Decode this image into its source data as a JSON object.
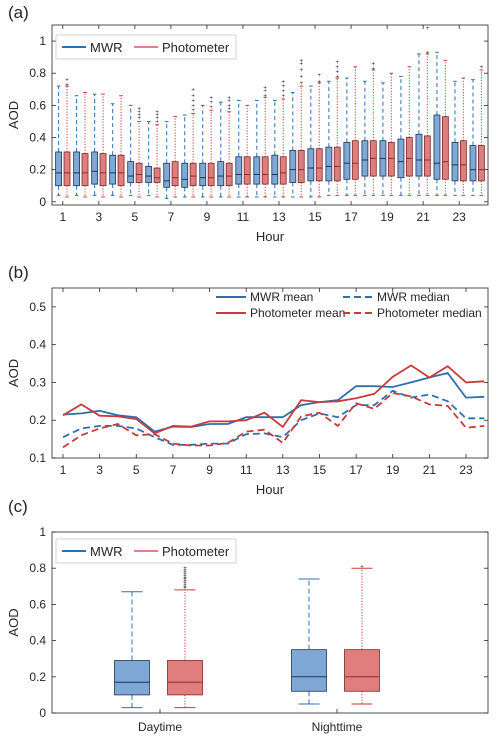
{
  "colors": {
    "mwr": "#2f6fb0",
    "photometer": "#c93a3a",
    "mwr_fill": "#7fa8d6",
    "photometer_fill": "#e07d7d",
    "axis": "#262626",
    "grid": "#d9d9d9"
  },
  "chart_data": [
    {
      "panel_label": "(a)",
      "type": "box",
      "xlabel": "Hour",
      "ylabel": "AOD",
      "xlim": [
        0.4,
        24.6
      ],
      "ylim": [
        -0.02,
        1.1
      ],
      "xticks": [
        "1",
        "3",
        "5",
        "7",
        "9",
        "11",
        "13",
        "15",
        "17",
        "19",
        "21",
        "23"
      ],
      "yticks": [
        "0",
        "0.2",
        "0.4",
        "0.6",
        "0.8",
        "1"
      ],
      "legend": {
        "placement": "top-left",
        "entries": [
          "MWR",
          "Photometer"
        ]
      },
      "series": [
        {
          "name": "MWR",
          "boxes": [
            {
              "x": 1,
              "q1": 0.1,
              "median": 0.18,
              "q3": 0.31,
              "lo": 0.04,
              "hi": 0.72
            },
            {
              "x": 2,
              "q1": 0.1,
              "median": 0.18,
              "q3": 0.31,
              "lo": 0.04,
              "hi": 0.66
            },
            {
              "x": 3,
              "q1": 0.11,
              "median": 0.19,
              "q3": 0.31,
              "lo": 0.04,
              "hi": 0.67
            },
            {
              "x": 4,
              "q1": 0.11,
              "median": 0.18,
              "q3": 0.29,
              "lo": 0.04,
              "hi": 0.61
            },
            {
              "x": 5,
              "q1": 0.12,
              "median": 0.16,
              "q3": 0.25,
              "lo": 0.04,
              "hi": 0.6
            },
            {
              "x": 6,
              "q1": 0.12,
              "median": 0.16,
              "q3": 0.22,
              "lo": 0.04,
              "hi": 0.5
            },
            {
              "x": 7,
              "q1": 0.09,
              "median": 0.13,
              "q3": 0.24,
              "lo": 0.02,
              "hi": 0.5
            },
            {
              "x": 8,
              "q1": 0.09,
              "median": 0.14,
              "q3": 0.24,
              "lo": 0.03,
              "hi": 0.54
            },
            {
              "x": 9,
              "q1": 0.1,
              "median": 0.15,
              "q3": 0.24,
              "lo": 0.03,
              "hi": 0.6
            },
            {
              "x": 10,
              "q1": 0.1,
              "median": 0.16,
              "q3": 0.25,
              "lo": 0.03,
              "hi": 0.62
            },
            {
              "x": 11,
              "q1": 0.11,
              "median": 0.17,
              "q3": 0.28,
              "lo": 0.03,
              "hi": 0.63
            },
            {
              "x": 12,
              "q1": 0.11,
              "median": 0.17,
              "q3": 0.28,
              "lo": 0.03,
              "hi": 0.63
            },
            {
              "x": 13,
              "q1": 0.11,
              "median": 0.17,
              "q3": 0.29,
              "lo": 0.03,
              "hi": 0.63
            },
            {
              "x": 14,
              "q1": 0.12,
              "median": 0.2,
              "q3": 0.32,
              "lo": 0.03,
              "hi": 0.68
            },
            {
              "x": 15,
              "q1": 0.13,
              "median": 0.21,
              "q3": 0.33,
              "lo": 0.03,
              "hi": 0.72
            },
            {
              "x": 16,
              "q1": 0.13,
              "median": 0.22,
              "q3": 0.34,
              "lo": 0.04,
              "hi": 0.75
            },
            {
              "x": 17,
              "q1": 0.14,
              "median": 0.24,
              "q3": 0.37,
              "lo": 0.04,
              "hi": 0.77
            },
            {
              "x": 18,
              "q1": 0.16,
              "median": 0.26,
              "q3": 0.38,
              "lo": 0.04,
              "hi": 0.75
            },
            {
              "x": 19,
              "q1": 0.16,
              "median": 0.27,
              "q3": 0.38,
              "lo": 0.04,
              "hi": 0.74
            },
            {
              "x": 20,
              "q1": 0.15,
              "median": 0.25,
              "q3": 0.39,
              "lo": 0.04,
              "hi": 0.78
            },
            {
              "x": 21,
              "q1": 0.16,
              "median": 0.26,
              "q3": 0.42,
              "lo": 0.04,
              "hi": 0.92
            },
            {
              "x": 22,
              "q1": 0.14,
              "median": 0.24,
              "q3": 0.54,
              "lo": 0.04,
              "hi": 0.93
            },
            {
              "x": 23,
              "q1": 0.13,
              "median": 0.23,
              "q3": 0.37,
              "lo": 0.04,
              "hi": 0.75
            },
            {
              "x": 24,
              "q1": 0.13,
              "median": 0.2,
              "q3": 0.35,
              "lo": 0.04,
              "hi": 0.76
            }
          ]
        },
        {
          "name": "Photometer",
          "boxes": [
            {
              "x": 1,
              "q1": 0.1,
              "median": 0.18,
              "q3": 0.31,
              "lo": 0.03,
              "hi": 0.72
            },
            {
              "x": 2,
              "q1": 0.1,
              "median": 0.18,
              "q3": 0.3,
              "lo": 0.03,
              "hi": 0.68
            },
            {
              "x": 3,
              "q1": 0.1,
              "median": 0.18,
              "q3": 0.3,
              "lo": 0.03,
              "hi": 0.67
            },
            {
              "x": 4,
              "q1": 0.1,
              "median": 0.18,
              "q3": 0.29,
              "lo": 0.03,
              "hi": 0.66
            },
            {
              "x": 5,
              "q1": 0.12,
              "median": 0.17,
              "q3": 0.24,
              "lo": 0.03,
              "hi": 0.5
            },
            {
              "x": 6,
              "q1": 0.12,
              "median": 0.15,
              "q3": 0.21,
              "lo": 0.03,
              "hi": 0.48
            },
            {
              "x": 7,
              "q1": 0.1,
              "median": 0.15,
              "q3": 0.25,
              "lo": 0.03,
              "hi": 0.53
            },
            {
              "x": 8,
              "q1": 0.1,
              "median": 0.16,
              "q3": 0.24,
              "lo": 0.03,
              "hi": 0.55
            },
            {
              "x": 9,
              "q1": 0.1,
              "median": 0.15,
              "q3": 0.24,
              "lo": 0.03,
              "hi": 0.57
            },
            {
              "x": 10,
              "q1": 0.1,
              "median": 0.16,
              "q3": 0.24,
              "lo": 0.03,
              "hi": 0.56
            },
            {
              "x": 11,
              "q1": 0.11,
              "median": 0.17,
              "q3": 0.28,
              "lo": 0.03,
              "hi": 0.6
            },
            {
              "x": 12,
              "q1": 0.11,
              "median": 0.17,
              "q3": 0.28,
              "lo": 0.03,
              "hi": 0.65
            },
            {
              "x": 13,
              "q1": 0.11,
              "median": 0.18,
              "q3": 0.28,
              "lo": 0.03,
              "hi": 0.64
            },
            {
              "x": 14,
              "q1": 0.12,
              "median": 0.2,
              "q3": 0.32,
              "lo": 0.03,
              "hi": 0.72
            },
            {
              "x": 15,
              "q1": 0.13,
              "median": 0.21,
              "q3": 0.33,
              "lo": 0.03,
              "hi": 0.74
            },
            {
              "x": 16,
              "q1": 0.13,
              "median": 0.22,
              "q3": 0.34,
              "lo": 0.04,
              "hi": 0.77
            },
            {
              "x": 17,
              "q1": 0.14,
              "median": 0.24,
              "q3": 0.38,
              "lo": 0.04,
              "hi": 0.84
            },
            {
              "x": 18,
              "q1": 0.16,
              "median": 0.27,
              "q3": 0.38,
              "lo": 0.04,
              "hi": 0.82
            },
            {
              "x": 19,
              "q1": 0.16,
              "median": 0.27,
              "q3": 0.37,
              "lo": 0.04,
              "hi": 0.8
            },
            {
              "x": 20,
              "q1": 0.16,
              "median": 0.27,
              "q3": 0.4,
              "lo": 0.04,
              "hi": 0.84
            },
            {
              "x": 21,
              "q1": 0.16,
              "median": 0.26,
              "q3": 0.41,
              "lo": 0.04,
              "hi": 0.92
            },
            {
              "x": 22,
              "q1": 0.14,
              "median": 0.25,
              "q3": 0.53,
              "lo": 0.04,
              "hi": 0.88
            },
            {
              "x": 23,
              "q1": 0.13,
              "median": 0.23,
              "q3": 0.38,
              "lo": 0.04,
              "hi": 0.77
            },
            {
              "x": 24,
              "q1": 0.13,
              "median": 0.2,
              "q3": 0.35,
              "lo": 0.04,
              "hi": 0.82
            }
          ]
        }
      ],
      "outliers": {
        "Photometer": [
          {
            "x": 1,
            "values": [
              0.73,
              0.76
            ]
          },
          {
            "x": 5,
            "values": [
              0.52,
              0.54,
              0.56,
              0.58
            ]
          },
          {
            "x": 6,
            "values": [
              0.5,
              0.52,
              0.54,
              0.56
            ]
          },
          {
            "x": 8,
            "values": [
              0.57,
              0.6,
              0.63,
              0.66,
              0.7
            ]
          },
          {
            "x": 9,
            "values": [
              0.59,
              0.62,
              0.65
            ]
          },
          {
            "x": 10,
            "values": [
              0.58,
              0.6,
              0.63,
              0.65
            ]
          },
          {
            "x": 12,
            "values": [
              0.66,
              0.69,
              0.71
            ]
          },
          {
            "x": 13,
            "values": [
              0.66,
              0.69,
              0.72,
              0.75
            ]
          },
          {
            "x": 14,
            "values": [
              0.74,
              0.78,
              0.82,
              0.86,
              0.88
            ]
          },
          {
            "x": 15,
            "values": [
              0.75,
              0.79
            ]
          },
          {
            "x": 16,
            "values": [
              0.78,
              0.81,
              0.84,
              0.87
            ]
          },
          {
            "x": 18,
            "values": [
              0.83,
              0.86
            ]
          },
          {
            "x": 21,
            "values": [
              0.93,
              1.08
            ]
          },
          {
            "x": 24,
            "values": [
              0.84
            ]
          }
        ]
      }
    },
    {
      "panel_label": "(b)",
      "type": "line",
      "xlabel": "Hour",
      "ylabel": "AOD",
      "xlim": [
        0.4,
        24.2
      ],
      "ylim": [
        0.1,
        0.55
      ],
      "xticks": [
        "1",
        "3",
        "5",
        "7",
        "9",
        "11",
        "13",
        "15",
        "17",
        "19",
        "21",
        "23"
      ],
      "yticks": [
        "0.1",
        "0.2",
        "0.3",
        "0.4",
        "0.5"
      ],
      "legend": {
        "placement": "top-right",
        "entries": [
          "MWR mean",
          "MWR median",
          "Photometer mean",
          "Photometer median"
        ]
      },
      "x": [
        1,
        2,
        3,
        4,
        5,
        6,
        7,
        8,
        9,
        10,
        11,
        12,
        13,
        14,
        15,
        16,
        17,
        18,
        19,
        20,
        21,
        22,
        23,
        24
      ],
      "series": [
        {
          "name": "MWR mean",
          "style": "solid",
          "values": [
            0.215,
            0.218,
            0.225,
            0.213,
            0.208,
            0.17,
            0.183,
            0.182,
            0.19,
            0.19,
            0.208,
            0.208,
            0.208,
            0.24,
            0.248,
            0.253,
            0.29,
            0.29,
            0.288,
            0.3,
            0.313,
            0.325,
            0.26,
            0.262
          ]
        },
        {
          "name": "Photometer mean",
          "style": "solid",
          "values": [
            0.213,
            0.242,
            0.212,
            0.21,
            0.203,
            0.165,
            0.185,
            0.183,
            0.197,
            0.197,
            0.2,
            0.22,
            0.182,
            0.253,
            0.248,
            0.25,
            0.258,
            0.27,
            0.315,
            0.345,
            0.313,
            0.343,
            0.3,
            0.303
          ]
        },
        {
          "name": "MWR median",
          "style": "dashed",
          "values": [
            0.155,
            0.178,
            0.185,
            0.185,
            0.178,
            0.155,
            0.135,
            0.135,
            0.138,
            0.138,
            0.163,
            0.165,
            0.155,
            0.2,
            0.218,
            0.208,
            0.24,
            0.24,
            0.278,
            0.26,
            0.268,
            0.25,
            0.205,
            0.205
          ]
        },
        {
          "name": "Photometer median",
          "style": "dashed",
          "values": [
            0.128,
            0.16,
            0.178,
            0.19,
            0.16,
            0.163,
            0.138,
            0.133,
            0.133,
            0.14,
            0.17,
            0.175,
            0.14,
            0.21,
            0.22,
            0.185,
            0.245,
            0.23,
            0.272,
            0.263,
            0.242,
            0.238,
            0.18,
            0.185
          ]
        }
      ]
    },
    {
      "panel_label": "(c)",
      "type": "box",
      "xlabel": "",
      "ylabel": "AOD",
      "ylim": [
        0,
        1.0
      ],
      "categories": [
        "Daytime",
        "Nighttime"
      ],
      "yticks": [
        "0",
        "0.2",
        "0.4",
        "0.6",
        "0.8",
        "1"
      ],
      "legend": {
        "placement": "top-left",
        "entries": [
          "MWR",
          "Photometer"
        ]
      },
      "series": [
        {
          "name": "MWR",
          "boxes": [
            {
              "category": "Daytime",
              "q1": 0.1,
              "median": 0.17,
              "q3": 0.29,
              "lo": 0.03,
              "hi": 0.67
            },
            {
              "category": "Nighttime",
              "q1": 0.12,
              "median": 0.2,
              "q3": 0.35,
              "lo": 0.05,
              "hi": 0.74
            }
          ]
        },
        {
          "name": "Photometer",
          "boxes": [
            {
              "category": "Daytime",
              "q1": 0.1,
              "median": 0.17,
              "q3": 0.29,
              "lo": 0.03,
              "hi": 0.68
            },
            {
              "category": "Nighttime",
              "q1": 0.12,
              "median": 0.2,
              "q3": 0.35,
              "lo": 0.05,
              "hi": 0.8
            }
          ]
        }
      ],
      "outliers": {
        "Photometer": [
          {
            "category": "Daytime",
            "values": [
              0.69,
              0.7,
              0.71,
              0.72,
              0.73,
              0.74,
              0.75,
              0.76,
              0.77,
              0.78,
              0.79,
              0.8
            ]
          },
          {
            "category": "Nighttime",
            "values": [
              0.81
            ]
          }
        ]
      }
    }
  ]
}
